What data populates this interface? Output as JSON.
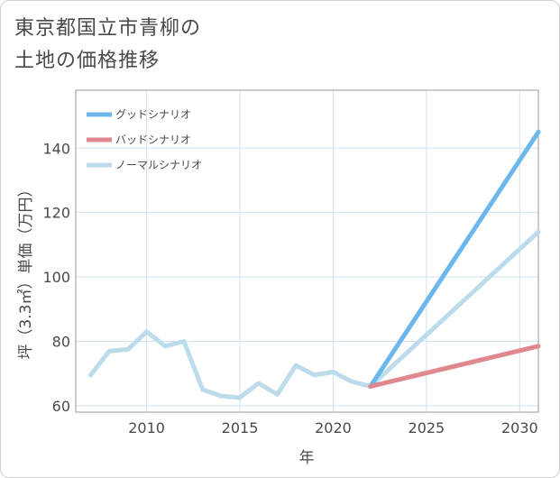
{
  "title_line1": "東京都国立市青柳の",
  "title_line2": "土地の価格推移",
  "chart_data": {
    "type": "line",
    "title": "東京都国立市青柳の土地の価格推移",
    "xlabel": "年",
    "ylabel": "坪（3.3㎡）単価（万円）",
    "xlim": [
      2006.2,
      2031
    ],
    "ylim": [
      58,
      158
    ],
    "xticks": [
      2010,
      2015,
      2020,
      2025,
      2030
    ],
    "yticks": [
      60,
      80,
      100,
      120,
      140
    ],
    "grid": true,
    "legend_position": "top-left",
    "series": [
      {
        "name": "グッドシナリオ",
        "color": "#6cb8ec",
        "x": [
          2022,
          2031
        ],
        "y": [
          66,
          145
        ]
      },
      {
        "name": "バッドシナリオ",
        "color": "#e08790",
        "x": [
          2022,
          2031
        ],
        "y": [
          66,
          78.5
        ]
      },
      {
        "name": "ノーマルシナリオ",
        "color": "#bcdcec",
        "x": [
          2007,
          2008,
          2009,
          2010,
          2011,
          2012,
          2013,
          2014,
          2015,
          2016,
          2017,
          2018,
          2019,
          2020,
          2021,
          2022,
          2031
        ],
        "y": [
          69.5,
          77,
          77.5,
          83,
          78.5,
          80,
          65,
          63,
          62.5,
          67,
          63.5,
          72.5,
          69.5,
          70.5,
          67.5,
          66,
          114
        ]
      }
    ]
  }
}
